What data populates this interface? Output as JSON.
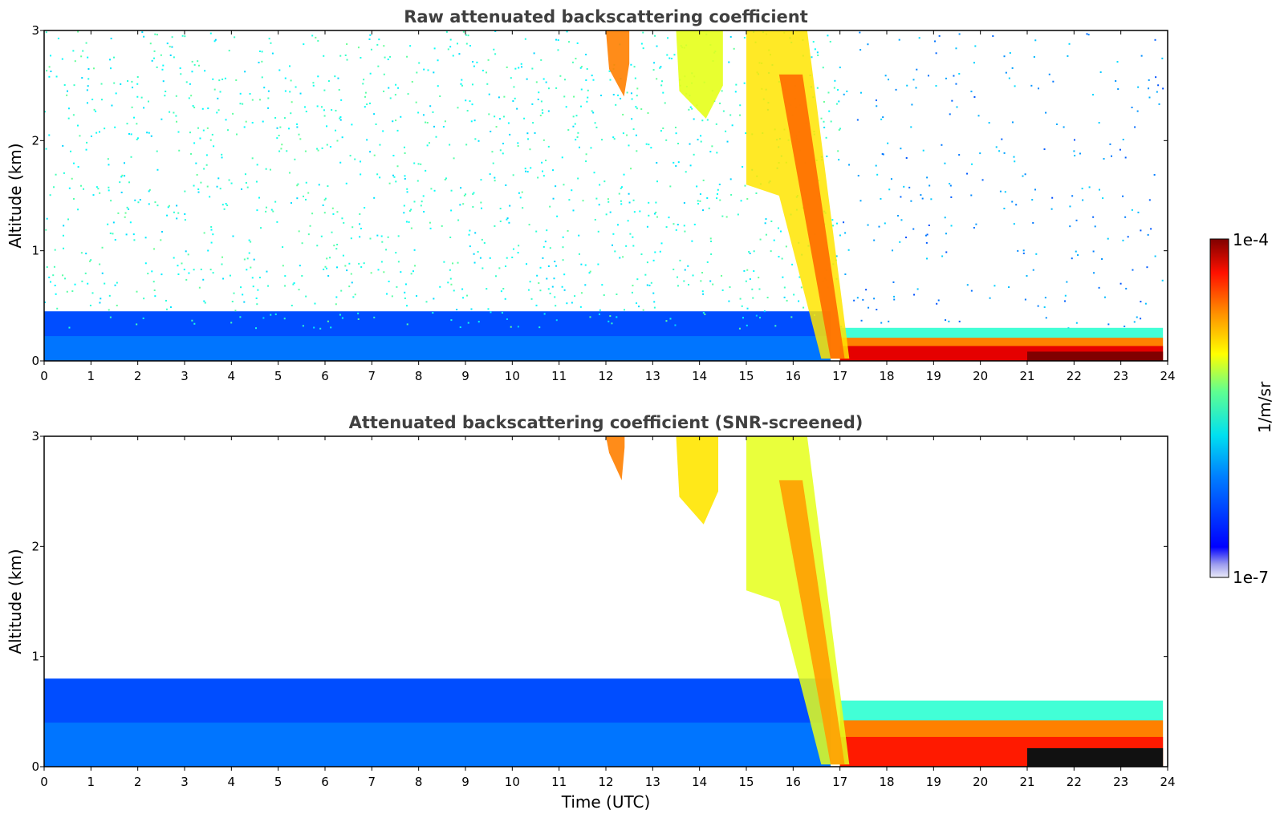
{
  "chart_data": [
    {
      "type": "heatmap",
      "title": "Raw attenuated backscattering coefficient",
      "xlabel": "",
      "ylabel": "Altitude (km)",
      "xlim": [
        0,
        24
      ],
      "ylim": [
        0,
        3
      ],
      "xticks": [
        "0",
        "1",
        "2",
        "3",
        "4",
        "5",
        "6",
        "7",
        "8",
        "9",
        "10",
        "11",
        "12",
        "13",
        "14",
        "15",
        "16",
        "17",
        "18",
        "19",
        "20",
        "21",
        "22",
        "23",
        "24"
      ],
      "yticks": [
        "0",
        "1",
        "2",
        "3"
      ],
      "features": [
        {
          "label": "boundary-layer aerosol",
          "t_start": 0,
          "t_end": 16.8,
          "top_km": 0.45,
          "level": 0.2
        },
        {
          "label": "noisy background",
          "t_start": 0,
          "t_end": 17,
          "top_km": 3.0,
          "level": 0.33
        },
        {
          "label": "sparse noise",
          "t_start": 17,
          "t_end": 23.9,
          "top_km": 3.0,
          "level": 0.2
        },
        {
          "label": "fog layer",
          "t_start": 17,
          "t_end": 23.9,
          "top_km": 0.3,
          "level": 0.9
        },
        {
          "label": "descending cloud",
          "t_start": 15,
          "t_end": 17.2,
          "top_km": 3.0,
          "level": 0.65
        },
        {
          "label": "high cloud 1",
          "t_start": 12,
          "t_end": 12.5,
          "bottom_km": 2.4,
          "level": 0.75
        },
        {
          "label": "high cloud 2",
          "t_start": 13.5,
          "t_end": 14.5,
          "bottom_km": 2.2,
          "level": 0.6
        }
      ]
    },
    {
      "type": "heatmap",
      "title": "Attenuated backscattering coefficient (SNR-screened)",
      "xlabel": "Time (UTC)",
      "ylabel": "Altitude (km)",
      "xlim": [
        0,
        24
      ],
      "ylim": [
        0,
        3
      ],
      "xticks": [
        "0",
        "1",
        "2",
        "3",
        "4",
        "5",
        "6",
        "7",
        "8",
        "9",
        "10",
        "11",
        "12",
        "13",
        "14",
        "15",
        "16",
        "17",
        "18",
        "19",
        "20",
        "21",
        "22",
        "23",
        "24"
      ],
      "yticks": [
        "0",
        "1",
        "2",
        "3"
      ],
      "features": [
        {
          "label": "boundary-layer aerosol",
          "t_start": 0,
          "t_end": 16.8,
          "top_km": 0.8,
          "level": 0.2
        },
        {
          "label": "fog layer",
          "t_start": 17,
          "t_end": 23.9,
          "top_km": 0.6,
          "level": 0.85
        },
        {
          "label": "descending cloud",
          "t_start": 15,
          "t_end": 17.2,
          "top_km": 3.0,
          "level": 0.6
        },
        {
          "label": "high cloud 1",
          "t_start": 12,
          "t_end": 12.4,
          "bottom_km": 2.6,
          "level": 0.75
        },
        {
          "label": "high cloud 2",
          "t_start": 13.5,
          "t_end": 14.4,
          "bottom_km": 2.2,
          "level": 0.65
        }
      ]
    }
  ],
  "colorbar": {
    "label": "1/m/sr",
    "min_label": "1e-7",
    "max_label": "1e-4",
    "colormap": "jet",
    "low_color": "#ebebf8",
    "high_color": "#7f0000"
  }
}
